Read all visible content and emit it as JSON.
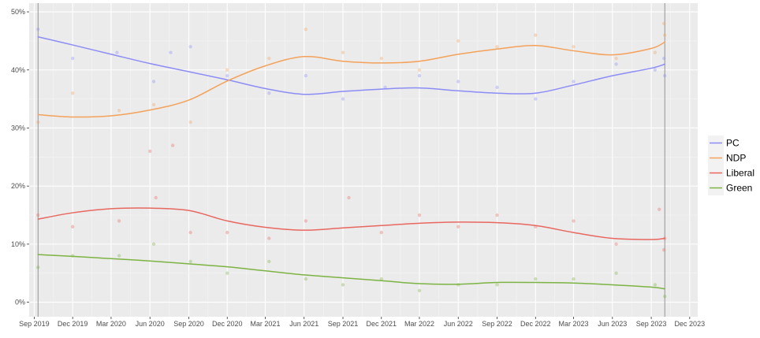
{
  "chart_data": {
    "type": "line",
    "title": "",
    "xlabel": "",
    "ylabel": "",
    "x_ticks": [
      "Sep 2019",
      "Dec 2019",
      "Mar 2020",
      "Jun 2020",
      "Sep 2020",
      "Dec 2020",
      "Mar 2021",
      "Jun 2021",
      "Sep 2021",
      "Dec 2021",
      "Mar 2022",
      "Jun 2022",
      "Sep 2022",
      "Dec 2022",
      "Mar 2023",
      "Jun 2023",
      "Sep 2023",
      "Dec 2023"
    ],
    "x_range": [
      "2019-08-20",
      "2023-12-20"
    ],
    "y_ticks": [
      "0%",
      "10%",
      "20%",
      "30%",
      "40%",
      "50%"
    ],
    "ylim": [
      -2.5,
      51.5
    ],
    "grid": true,
    "legend_position": "right",
    "reference_lines": [
      "2019-09-10",
      "2023-10-03"
    ],
    "series": [
      {
        "name": "PC",
        "color": "#8c8cf6",
        "trend": [
          {
            "date": "2019-09-10",
            "value": 45.7
          },
          {
            "date": "2019-12-01",
            "value": 44.3
          },
          {
            "date": "2020-03-01",
            "value": 42.7
          },
          {
            "date": "2020-06-01",
            "value": 41.1
          },
          {
            "date": "2020-09-01",
            "value": 39.7
          },
          {
            "date": "2020-12-01",
            "value": 38.3
          },
          {
            "date": "2021-03-01",
            "value": 36.8
          },
          {
            "date": "2021-06-01",
            "value": 35.8
          },
          {
            "date": "2021-09-01",
            "value": 36.3
          },
          {
            "date": "2021-12-01",
            "value": 36.7
          },
          {
            "date": "2022-03-01",
            "value": 36.9
          },
          {
            "date": "2022-06-01",
            "value": 36.4
          },
          {
            "date": "2022-09-01",
            "value": 36.0
          },
          {
            "date": "2022-12-01",
            "value": 36.0
          },
          {
            "date": "2023-03-01",
            "value": 37.4
          },
          {
            "date": "2023-06-01",
            "value": 39.0
          },
          {
            "date": "2023-09-01",
            "value": 40.3
          },
          {
            "date": "2023-10-03",
            "value": 41.0
          }
        ],
        "polls": [
          {
            "date": "2019-09-10",
            "value": 47
          },
          {
            "date": "2019-12-01",
            "value": 42
          },
          {
            "date": "2020-03-15",
            "value": 43
          },
          {
            "date": "2020-06-10",
            "value": 38
          },
          {
            "date": "2020-07-20",
            "value": 43
          },
          {
            "date": "2020-09-05",
            "value": 44
          },
          {
            "date": "2020-12-01",
            "value": 39
          },
          {
            "date": "2021-03-10",
            "value": 36
          },
          {
            "date": "2021-06-05",
            "value": 39
          },
          {
            "date": "2021-09-01",
            "value": 35
          },
          {
            "date": "2021-12-10",
            "value": 37
          },
          {
            "date": "2022-03-01",
            "value": 39
          },
          {
            "date": "2022-06-01",
            "value": 38
          },
          {
            "date": "2022-09-01",
            "value": 37
          },
          {
            "date": "2022-12-01",
            "value": 35
          },
          {
            "date": "2023-03-01",
            "value": 38
          },
          {
            "date": "2023-06-10",
            "value": 41
          },
          {
            "date": "2023-09-10",
            "value": 40
          },
          {
            "date": "2023-10-01",
            "value": 42
          },
          {
            "date": "2023-10-03",
            "value": 39
          }
        ]
      },
      {
        "name": "NDP",
        "color": "#f4a15a",
        "trend": [
          {
            "date": "2019-09-10",
            "value": 32.3
          },
          {
            "date": "2019-12-01",
            "value": 31.9
          },
          {
            "date": "2020-03-01",
            "value": 32.1
          },
          {
            "date": "2020-06-01",
            "value": 33.1
          },
          {
            "date": "2020-09-01",
            "value": 34.8
          },
          {
            "date": "2020-12-01",
            "value": 38.1
          },
          {
            "date": "2021-03-01",
            "value": 40.7
          },
          {
            "date": "2021-06-01",
            "value": 42.3
          },
          {
            "date": "2021-09-01",
            "value": 41.5
          },
          {
            "date": "2021-12-01",
            "value": 41.2
          },
          {
            "date": "2022-03-01",
            "value": 41.5
          },
          {
            "date": "2022-06-01",
            "value": 42.7
          },
          {
            "date": "2022-09-01",
            "value": 43.6
          },
          {
            "date": "2022-12-01",
            "value": 44.2
          },
          {
            "date": "2023-03-01",
            "value": 43.3
          },
          {
            "date": "2023-06-01",
            "value": 42.6
          },
          {
            "date": "2023-09-01",
            "value": 43.7
          },
          {
            "date": "2023-10-03",
            "value": 44.8
          }
        ],
        "polls": [
          {
            "date": "2019-09-10",
            "value": 31
          },
          {
            "date": "2019-12-01",
            "value": 36
          },
          {
            "date": "2020-03-20",
            "value": 33
          },
          {
            "date": "2020-06-10",
            "value": 34
          },
          {
            "date": "2020-09-05",
            "value": 31
          },
          {
            "date": "2020-12-01",
            "value": 40
          },
          {
            "date": "2021-03-10",
            "value": 42
          },
          {
            "date": "2021-06-05",
            "value": 47
          },
          {
            "date": "2021-09-01",
            "value": 43
          },
          {
            "date": "2021-12-01",
            "value": 42
          },
          {
            "date": "2022-03-01",
            "value": 40
          },
          {
            "date": "2022-06-01",
            "value": 45
          },
          {
            "date": "2022-09-01",
            "value": 44
          },
          {
            "date": "2022-12-01",
            "value": 46
          },
          {
            "date": "2023-03-01",
            "value": 44
          },
          {
            "date": "2023-06-10",
            "value": 42
          },
          {
            "date": "2023-09-10",
            "value": 43
          },
          {
            "date": "2023-10-01",
            "value": 48
          },
          {
            "date": "2023-10-03",
            "value": 46
          }
        ]
      },
      {
        "name": "Liberal",
        "color": "#e8675f",
        "trend": [
          {
            "date": "2019-09-10",
            "value": 14.3
          },
          {
            "date": "2019-12-01",
            "value": 15.4
          },
          {
            "date": "2020-03-01",
            "value": 16.1
          },
          {
            "date": "2020-06-01",
            "value": 16.2
          },
          {
            "date": "2020-09-01",
            "value": 15.8
          },
          {
            "date": "2020-12-01",
            "value": 14.0
          },
          {
            "date": "2021-03-01",
            "value": 12.9
          },
          {
            "date": "2021-06-01",
            "value": 12.4
          },
          {
            "date": "2021-09-01",
            "value": 12.8
          },
          {
            "date": "2021-12-01",
            "value": 13.2
          },
          {
            "date": "2022-03-01",
            "value": 13.6
          },
          {
            "date": "2022-06-01",
            "value": 13.8
          },
          {
            "date": "2022-09-01",
            "value": 13.7
          },
          {
            "date": "2022-12-01",
            "value": 13.2
          },
          {
            "date": "2023-03-01",
            "value": 12.0
          },
          {
            "date": "2023-06-01",
            "value": 11.0
          },
          {
            "date": "2023-09-01",
            "value": 10.8
          },
          {
            "date": "2023-10-03",
            "value": 11.0
          }
        ],
        "polls": [
          {
            "date": "2019-09-10",
            "value": 15
          },
          {
            "date": "2019-12-01",
            "value": 13
          },
          {
            "date": "2020-03-20",
            "value": 14
          },
          {
            "date": "2020-06-01",
            "value": 26
          },
          {
            "date": "2020-06-15",
            "value": 18
          },
          {
            "date": "2020-07-25",
            "value": 27
          },
          {
            "date": "2020-09-05",
            "value": 12
          },
          {
            "date": "2020-12-01",
            "value": 12
          },
          {
            "date": "2021-03-10",
            "value": 11
          },
          {
            "date": "2021-06-05",
            "value": 14
          },
          {
            "date": "2021-09-15",
            "value": 18
          },
          {
            "date": "2021-12-01",
            "value": 12
          },
          {
            "date": "2022-03-01",
            "value": 15
          },
          {
            "date": "2022-06-01",
            "value": 13
          },
          {
            "date": "2022-09-01",
            "value": 15
          },
          {
            "date": "2022-12-01",
            "value": 13
          },
          {
            "date": "2023-03-01",
            "value": 14
          },
          {
            "date": "2023-06-10",
            "value": 10
          },
          {
            "date": "2023-09-20",
            "value": 16
          },
          {
            "date": "2023-10-01",
            "value": 9
          },
          {
            "date": "2023-10-03",
            "value": 11
          }
        ]
      },
      {
        "name": "Green",
        "color": "#7cb342",
        "trend": [
          {
            "date": "2019-09-10",
            "value": 8.2
          },
          {
            "date": "2019-12-01",
            "value": 7.9
          },
          {
            "date": "2020-03-01",
            "value": 7.5
          },
          {
            "date": "2020-06-01",
            "value": 7.1
          },
          {
            "date": "2020-09-01",
            "value": 6.6
          },
          {
            "date": "2020-12-01",
            "value": 6.1
          },
          {
            "date": "2021-03-01",
            "value": 5.4
          },
          {
            "date": "2021-06-01",
            "value": 4.7
          },
          {
            "date": "2021-09-01",
            "value": 4.2
          },
          {
            "date": "2021-12-01",
            "value": 3.7
          },
          {
            "date": "2022-03-01",
            "value": 3.2
          },
          {
            "date": "2022-06-01",
            "value": 3.1
          },
          {
            "date": "2022-09-01",
            "value": 3.4
          },
          {
            "date": "2022-12-01",
            "value": 3.4
          },
          {
            "date": "2023-03-01",
            "value": 3.3
          },
          {
            "date": "2023-06-01",
            "value": 3.0
          },
          {
            "date": "2023-09-01",
            "value": 2.6
          },
          {
            "date": "2023-10-03",
            "value": 2.3
          }
        ],
        "polls": [
          {
            "date": "2019-09-10",
            "value": 6
          },
          {
            "date": "2019-12-01",
            "value": 8
          },
          {
            "date": "2020-03-20",
            "value": 8
          },
          {
            "date": "2020-06-10",
            "value": 10
          },
          {
            "date": "2020-09-05",
            "value": 7
          },
          {
            "date": "2020-12-01",
            "value": 5
          },
          {
            "date": "2021-03-10",
            "value": 7
          },
          {
            "date": "2021-06-05",
            "value": 4
          },
          {
            "date": "2021-09-01",
            "value": 3
          },
          {
            "date": "2021-12-01",
            "value": 4
          },
          {
            "date": "2022-03-01",
            "value": 2
          },
          {
            "date": "2022-06-01",
            "value": 3
          },
          {
            "date": "2022-09-01",
            "value": 3
          },
          {
            "date": "2022-12-01",
            "value": 4
          },
          {
            "date": "2023-03-01",
            "value": 4
          },
          {
            "date": "2023-06-10",
            "value": 5
          },
          {
            "date": "2023-09-10",
            "value": 3
          },
          {
            "date": "2023-10-03",
            "value": 1
          }
        ]
      }
    ]
  }
}
